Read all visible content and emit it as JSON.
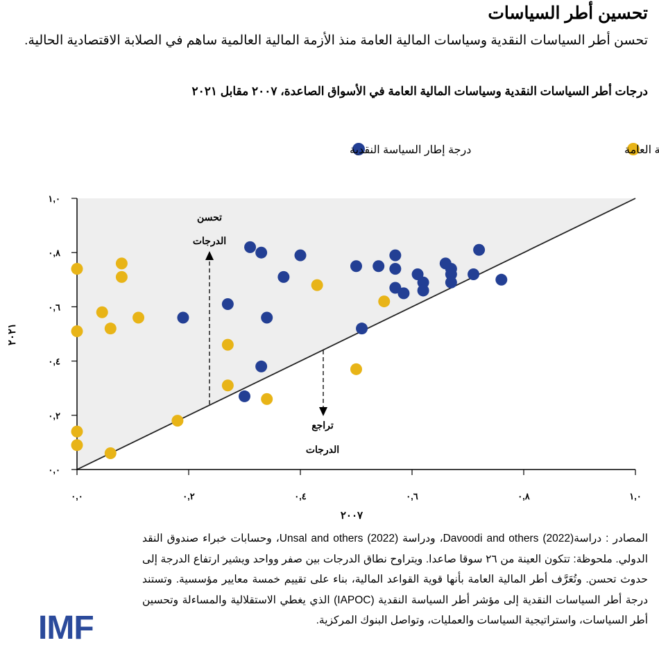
{
  "header": {
    "title": "تحسين أطر السياسات",
    "subtitle": "تحسن أطر السياسات النقدية وسياسات المالية العامة منذ الأزمة المالية العالمية ساهم في الصلابة الاقتصادية الحالية."
  },
  "chart_data": {
    "type": "scatter",
    "title": "درجات أطر السياسات النقدية وسياسات المالية العامة في الأسواق الصاعدة، ٢٠٠٧ مقابل ٢٠٢١",
    "xlabel": "٢٠٠٧",
    "ylabel": "٢٠٢١",
    "xlim": [
      0,
      1
    ],
    "ylim": [
      0,
      1
    ],
    "x_ticks": [
      0,
      0.2,
      0.4,
      0.6,
      0.8,
      1.0
    ],
    "x_tick_labels": [
      "٠,٠",
      "٠,٢",
      "٠,٤",
      "٠,٦",
      "٠,٨",
      "١,٠"
    ],
    "y_ticks": [
      0,
      0.2,
      0.4,
      0.6,
      0.8,
      1.0
    ],
    "y_tick_labels": [
      "٠,٠",
      "٠,٢",
      "٠,٤",
      "٠,٦",
      "٠,٨",
      "١,٠"
    ],
    "legend_position": "top",
    "diagonal_line": "45-degree",
    "annotations": {
      "up_line1": "تحسن",
      "up_line2": "الدرجات",
      "down_line1": "تراجع",
      "down_line2": "الدرجات"
    },
    "series": [
      {
        "name": "درجة إطار المالية العامة",
        "color": "#e8b417",
        "points": [
          [
            0,
            0.74
          ],
          [
            0.08,
            0.76
          ],
          [
            0.08,
            0.71
          ],
          [
            0.045,
            0.58
          ],
          [
            0.11,
            0.56
          ],
          [
            0.06,
            0.52
          ],
          [
            0,
            0.51
          ],
          [
            0.27,
            0.46
          ],
          [
            0.27,
            0.31
          ],
          [
            0.34,
            0.26
          ],
          [
            0.18,
            0.18
          ],
          [
            0,
            0.14
          ],
          [
            0,
            0.09
          ],
          [
            0.06,
            0.06
          ],
          [
            0.43,
            0.68
          ],
          [
            0.55,
            0.62
          ],
          [
            0.5,
            0.37
          ]
        ]
      },
      {
        "name": "درجة إطار السياسة النقدية",
        "color": "#233f94",
        "points": [
          [
            0.31,
            0.82
          ],
          [
            0.33,
            0.8
          ],
          [
            0.4,
            0.79
          ],
          [
            0.37,
            0.71
          ],
          [
            0.27,
            0.61
          ],
          [
            0.19,
            0.56
          ],
          [
            0.34,
            0.56
          ],
          [
            0.33,
            0.38
          ],
          [
            0.3,
            0.27
          ],
          [
            0.51,
            0.52
          ],
          [
            0.5,
            0.75
          ],
          [
            0.54,
            0.75
          ],
          [
            0.57,
            0.79
          ],
          [
            0.57,
            0.74
          ],
          [
            0.61,
            0.72
          ],
          [
            0.62,
            0.69
          ],
          [
            0.62,
            0.66
          ],
          [
            0.57,
            0.67
          ],
          [
            0.585,
            0.65
          ],
          [
            0.66,
            0.76
          ],
          [
            0.67,
            0.74
          ],
          [
            0.67,
            0.72
          ],
          [
            0.67,
            0.69
          ],
          [
            0.72,
            0.81
          ],
          [
            0.71,
            0.72
          ],
          [
            0.76,
            0.7
          ]
        ]
      }
    ]
  },
  "notes": "المصادر : دراسة(2022) Davoodi and others، ودراسة (2022) Unsal and others، وحسابات خبراء صندوق النقد الدولي. ملحوظة: تتكون العينة من ٢٦ سوقا صاعدا. ويتراوح نطاق الدرجات بين صفر وواحد ويشير ارتفاع الدرجة إلى حدوث تحسن. وتُعَرَّف أطر المالية العامة بأنها قوية القواعد المالية، بناء على تقييم خمسة معايير مؤسسية. وتستند درجة أطر السياسات النقدية إلى مؤشر أطر السياسة النقدية (IAPOC) الذي يغطي الاستقلالية والمساءلة وتحسين أطر السياسات، واستراتيجية السياسات والعمليات، وتواصل البنوك المركزية.",
  "logo": "IMF"
}
